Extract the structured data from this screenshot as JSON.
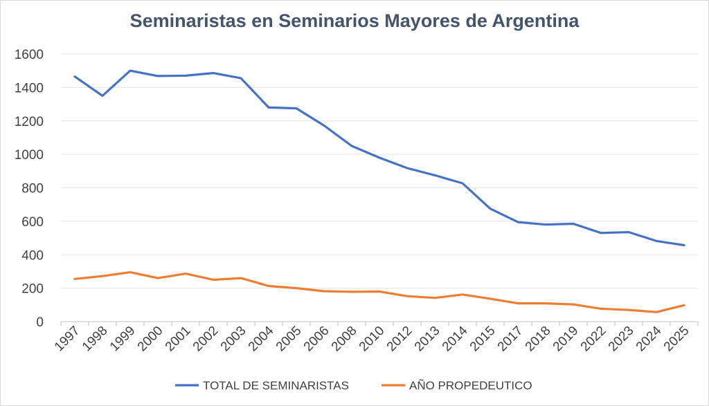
{
  "chart_data": {
    "type": "line",
    "title": "Seminaristas en Seminarios Mayores de Argentina",
    "xlabel": "",
    "ylabel": "",
    "categories": [
      "1997",
      "1998",
      "1999",
      "2000",
      "2001",
      "2002",
      "2003",
      "2004",
      "2005",
      "2006",
      "2008",
      "2010",
      "2012",
      "2013",
      "2014",
      "2015",
      "2017",
      "2018",
      "2019",
      "2022",
      "2023",
      "2024",
      "2025"
    ],
    "ylim": [
      0,
      1600
    ],
    "yticks": [
      "0",
      "200",
      "400",
      "600",
      "800",
      "1000",
      "1200",
      "1400",
      "1600"
    ],
    "grid": true,
    "legend_position": "bottom",
    "series": [
      {
        "name": "TOTAL DE SEMINARISTAS",
        "color": "#4472c4",
        "values": [
          1465,
          1350,
          1500,
          1468,
          1470,
          1486,
          1455,
          1280,
          1275,
          1172,
          1050,
          980,
          918,
          875,
          827,
          675,
          595,
          580,
          585,
          530,
          535,
          482,
          457
        ]
      },
      {
        "name": "AÑO PROPEDEUTICO",
        "color": "#ed7d31",
        "values": [
          255,
          272,
          295,
          260,
          287,
          250,
          260,
          213,
          200,
          182,
          178,
          180,
          152,
          142,
          162,
          137,
          109,
          109,
          103,
          77,
          70,
          57,
          98
        ]
      }
    ]
  }
}
